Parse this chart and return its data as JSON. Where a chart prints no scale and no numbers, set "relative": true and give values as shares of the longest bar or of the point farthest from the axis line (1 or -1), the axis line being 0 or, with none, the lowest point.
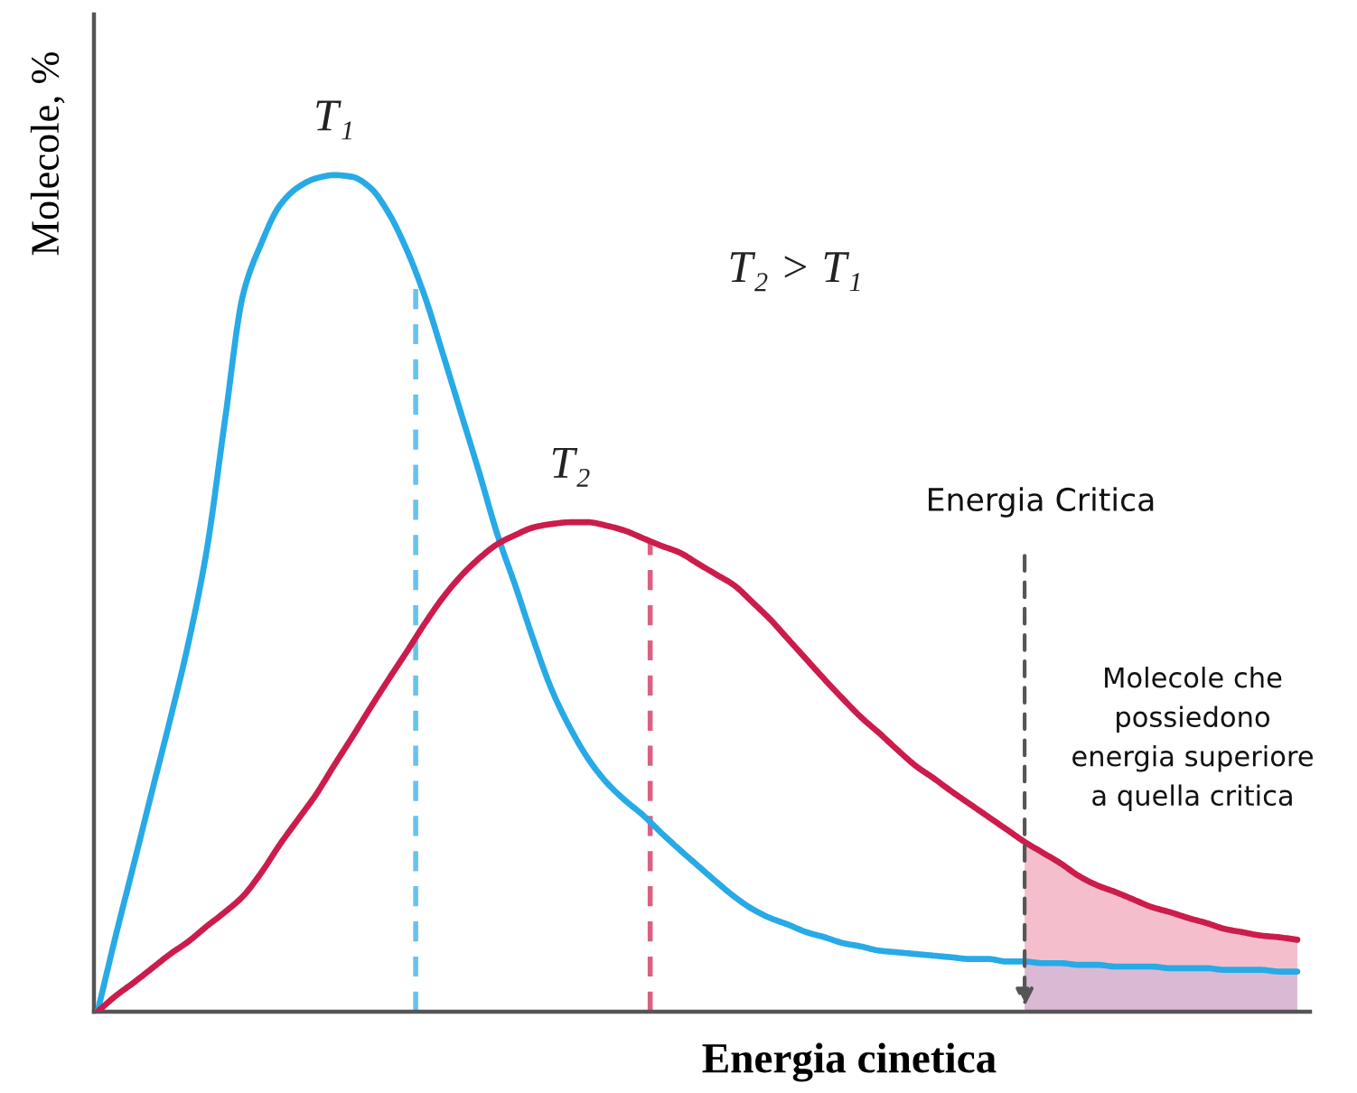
{
  "chart_data": {
    "type": "line",
    "relative": true,
    "xlabel": "Energia cinetica",
    "ylabel": "Molecole, %",
    "categories": [
      null,
      null,
      null,
      null,
      null,
      null,
      null,
      null,
      null,
      null,
      null,
      null,
      null,
      null,
      null,
      null,
      null,
      null,
      null,
      null,
      null,
      null,
      null,
      null,
      null,
      null,
      null,
      null,
      null,
      null,
      null,
      null,
      null,
      null,
      null,
      null,
      null,
      null,
      null,
      null,
      null,
      null,
      null,
      null,
      null,
      null,
      null,
      null,
      null,
      null,
      null,
      null,
      null,
      null,
      null,
      null,
      null,
      null,
      null,
      null,
      null,
      null,
      null,
      null,
      null,
      null,
      null
    ],
    "series": [
      {
        "name": "T₁",
        "color": "#27aae6",
        "values": [
          0,
          0.091,
          0.177,
          0.264,
          0.35,
          0.441,
          0.551,
          0.706,
          0.857,
          0.918,
          0.963,
          0.985,
          0.996,
          1.0,
          0.998,
          0.985,
          0.955,
          0.911,
          0.855,
          0.786,
          0.715,
          0.644,
          0.57,
          0.508,
          0.443,
          0.384,
          0.339,
          0.302,
          0.274,
          0.253,
          0.235,
          0.214,
          0.194,
          0.175,
          0.156,
          0.138,
          0.123,
          0.112,
          0.104,
          0.095,
          0.089,
          0.082,
          0.078,
          0.073,
          0.071,
          0.069,
          0.067,
          0.065,
          0.063,
          0.063,
          0.06,
          0.06,
          0.058,
          0.058,
          0.056,
          0.056,
          0.054,
          0.054,
          0.054,
          0.052,
          0.052,
          0.052,
          0.05,
          0.05,
          0.05,
          0.048,
          0.048
        ]
      },
      {
        "name": "T₂",
        "color": "#cc1c4c",
        "values": [
          0,
          0.019,
          0.035,
          0.052,
          0.069,
          0.084,
          0.102,
          0.119,
          0.138,
          0.166,
          0.199,
          0.229,
          0.259,
          0.294,
          0.328,
          0.363,
          0.397,
          0.43,
          0.464,
          0.495,
          0.521,
          0.542,
          0.559,
          0.57,
          0.579,
          0.583,
          0.585,
          0.585,
          0.581,
          0.575,
          0.566,
          0.557,
          0.549,
          0.536,
          0.523,
          0.51,
          0.49,
          0.469,
          0.445,
          0.421,
          0.397,
          0.374,
          0.352,
          0.333,
          0.313,
          0.294,
          0.279,
          0.263,
          0.248,
          0.233,
          0.218,
          0.203,
          0.19,
          0.177,
          0.162,
          0.151,
          0.143,
          0.134,
          0.125,
          0.119,
          0.112,
          0.106,
          0.099,
          0.095,
          0.091,
          0.089,
          0.086
        ]
      },
      {
        "type": "area",
        "color": "#e0456e",
        "values": [
          null,
          null,
          null,
          null,
          null,
          null,
          null,
          null,
          null,
          null,
          null,
          null,
          null,
          null,
          null,
          null,
          null,
          null,
          null,
          null,
          null,
          null,
          null,
          null,
          null,
          null,
          null,
          null,
          null,
          null,
          null,
          null,
          null,
          null,
          null,
          null,
          null,
          null,
          null,
          null,
          null,
          null,
          null,
          null,
          null,
          null,
          null,
          null,
          null,
          null,
          null,
          0.203,
          0.19,
          0.177,
          0.162,
          0.151,
          0.143,
          0.134,
          0.125,
          0.119,
          0.112,
          0.106,
          0.099,
          0.095,
          0.091,
          0.089,
          0.086
        ]
      },
      {
        "type": "area",
        "color": "#a7b1e2",
        "values": [
          null,
          null,
          null,
          null,
          null,
          null,
          null,
          null,
          null,
          null,
          null,
          null,
          null,
          null,
          null,
          null,
          null,
          null,
          null,
          null,
          null,
          null,
          null,
          null,
          null,
          null,
          null,
          null,
          null,
          null,
          null,
          null,
          null,
          null,
          null,
          null,
          null,
          null,
          null,
          null,
          null,
          null,
          null,
          null,
          null,
          null,
          null,
          null,
          null,
          null,
          null,
          0.06,
          0.058,
          0.058,
          0.056,
          0.056,
          0.054,
          0.054,
          0.054,
          0.052,
          0.052,
          0.052,
          0.05,
          0.05,
          0.05,
          0.048,
          0.048
        ]
      }
    ],
    "annotations": [
      "T₂ > T₁",
      "Energia Critica",
      "Molecole che\npossiedono\nenergia superiore\na quella critica"
    ]
  }
}
